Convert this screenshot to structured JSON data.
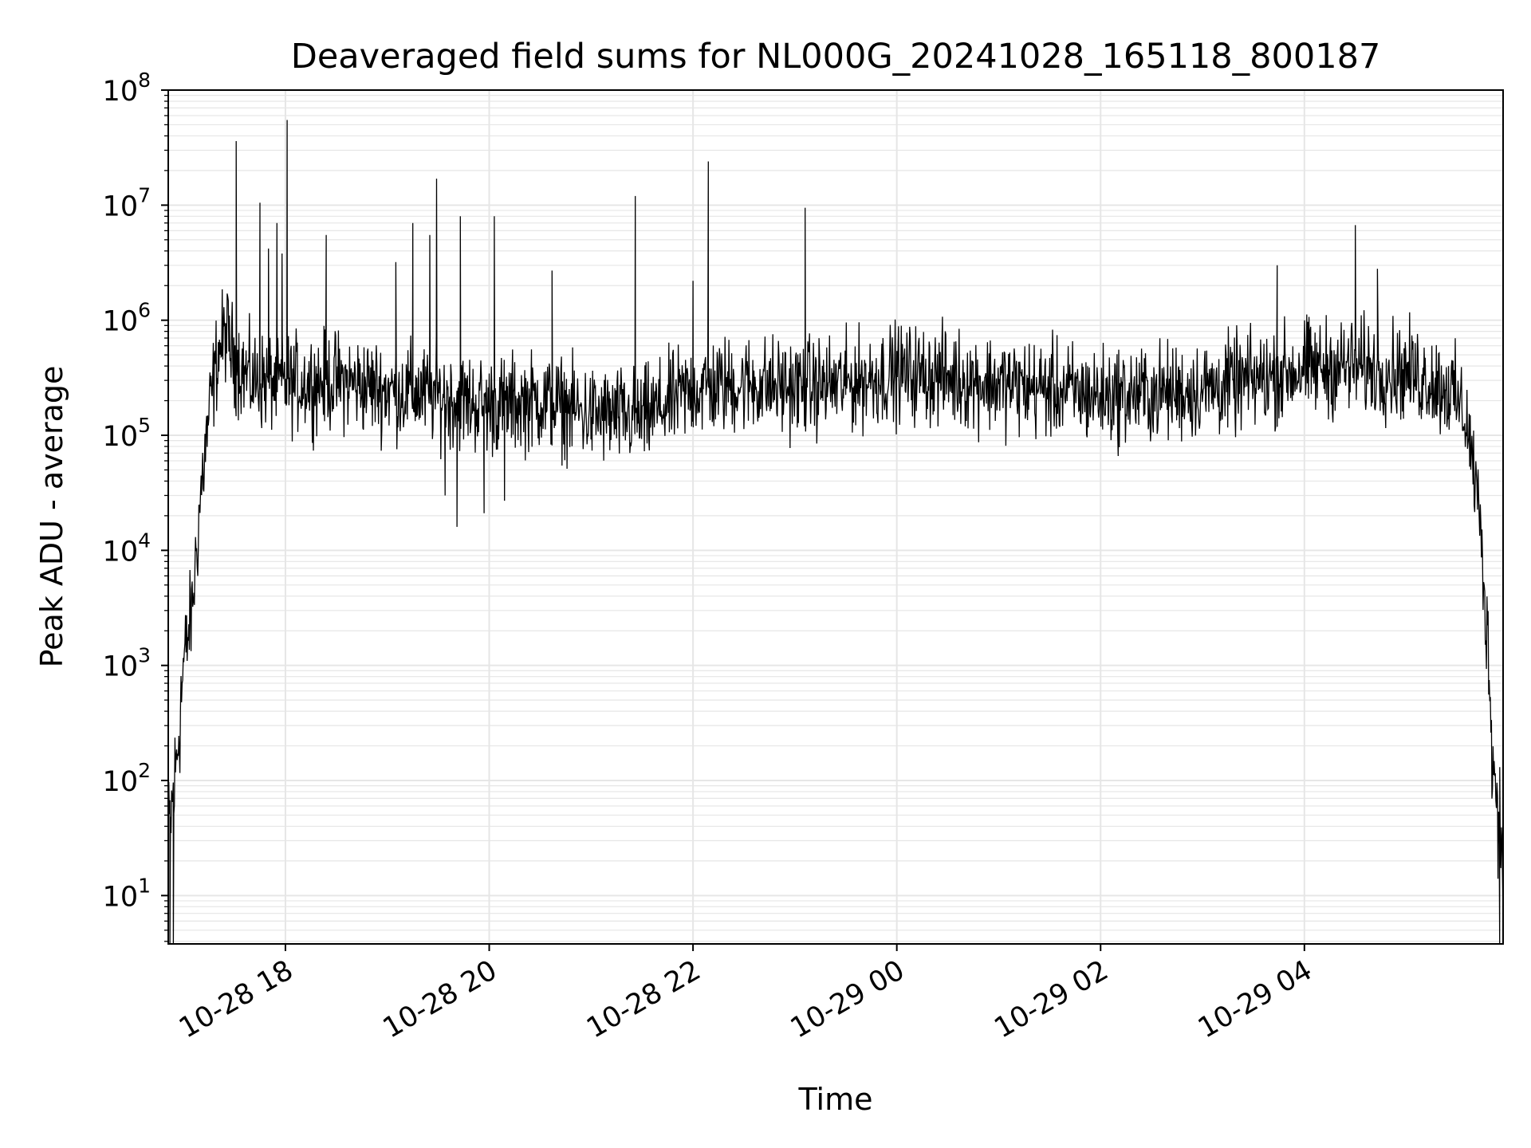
{
  "chart_data": {
    "type": "line",
    "title": "Deaveraged field sums for NL000G_20241028_165118_800187",
    "xlabel": "Time",
    "ylabel": "Peak ADU - average",
    "yscale": "log",
    "ylim": [
      3.8,
      100000000
    ],
    "xlim": [
      "2024-10-28 16:51",
      "2024-10-29 05:57"
    ],
    "grid": true,
    "line_color": "#000000",
    "grid_color": "#e6e6e6",
    "x_ticks": [
      {
        "value": "2024-10-28 18:00",
        "label": "10-28 18"
      },
      {
        "value": "2024-10-28 20:00",
        "label": "10-28 20"
      },
      {
        "value": "2024-10-28 22:00",
        "label": "10-28 22"
      },
      {
        "value": "2024-10-29 00:00",
        "label": "10-29 00"
      },
      {
        "value": "2024-10-29 02:00",
        "label": "10-29 02"
      },
      {
        "value": "2024-10-29 04:00",
        "label": "10-29 04"
      }
    ],
    "y_ticks": [
      {
        "value": 10,
        "base": "10",
        "exp": "1"
      },
      {
        "value": 100,
        "base": "10",
        "exp": "2"
      },
      {
        "value": 1000,
        "base": "10",
        "exp": "3"
      },
      {
        "value": 10000,
        "base": "10",
        "exp": "4"
      },
      {
        "value": 100000,
        "base": "10",
        "exp": "5"
      },
      {
        "value": 1000000,
        "base": "10",
        "exp": "6"
      },
      {
        "value": 10000000,
        "base": "10",
        "exp": "7"
      },
      {
        "value": 100000000,
        "base": "10",
        "exp": "8"
      }
    ],
    "series": [
      {
        "envelope": {
          "x": [
            "2024-10-28 16:51",
            "2024-10-28 16:55",
            "2024-10-28 17:00",
            "2024-10-28 17:05",
            "2024-10-28 17:10",
            "2024-10-28 17:15",
            "2024-10-28 17:20",
            "2024-10-28 17:25",
            "2024-10-28 17:30",
            "2024-10-28 17:40",
            "2024-10-28 18:00",
            "2024-10-28 18:30",
            "2024-10-28 19:00",
            "2024-10-28 19:30",
            "2024-10-28 20:00",
            "2024-10-28 20:30",
            "2024-10-28 21:00",
            "2024-10-28 21:30",
            "2024-10-28 22:00",
            "2024-10-28 22:30",
            "2024-10-28 23:00",
            "2024-10-28 23:30",
            "2024-10-29 00:00",
            "2024-10-29 00:30",
            "2024-10-29 01:00",
            "2024-10-29 01:30",
            "2024-10-29 02:00",
            "2024-10-29 02:30",
            "2024-10-29 03:00",
            "2024-10-29 03:30",
            "2024-10-29 04:00",
            "2024-10-29 04:30",
            "2024-10-29 05:00",
            "2024-10-29 05:15",
            "2024-10-29 05:25",
            "2024-10-29 05:35",
            "2024-10-29 05:42",
            "2024-10-29 05:48",
            "2024-10-29 05:52",
            "2024-10-29 05:57"
          ],
          "y": [
            30,
            100,
            1000,
            3000,
            30000,
            150000,
            500000,
            800000,
            450000,
            300000,
            280000,
            300000,
            250000,
            220000,
            180000,
            200000,
            150000,
            140000,
            250000,
            280000,
            260000,
            280000,
            350000,
            320000,
            280000,
            250000,
            220000,
            230000,
            250000,
            300000,
            380000,
            400000,
            350000,
            300000,
            250000,
            150000,
            30000,
            1500,
            100,
            30
          ]
        },
        "spikes": [
          {
            "x": "2024-10-28 17:31",
            "y": 36000000
          },
          {
            "x": "2024-10-28 17:45",
            "y": 10500000
          },
          {
            "x": "2024-10-28 17:50",
            "y": 4200000
          },
          {
            "x": "2024-10-28 17:55",
            "y": 7000000
          },
          {
            "x": "2024-10-28 17:58",
            "y": 3800000
          },
          {
            "x": "2024-10-28 18:01",
            "y": 55000000
          },
          {
            "x": "2024-10-28 18:24",
            "y": 5500000
          },
          {
            "x": "2024-10-28 19:05",
            "y": 3200000
          },
          {
            "x": "2024-10-28 19:15",
            "y": 7000000
          },
          {
            "x": "2024-10-28 19:25",
            "y": 5500000
          },
          {
            "x": "2024-10-28 19:29",
            "y": 17000000
          },
          {
            "x": "2024-10-28 19:43",
            "y": 8000000
          },
          {
            "x": "2024-10-28 20:03",
            "y": 8000000
          },
          {
            "x": "2024-10-28 20:37",
            "y": 2700000
          },
          {
            "x": "2024-10-28 21:26",
            "y": 12000000
          },
          {
            "x": "2024-10-28 22:09",
            "y": 24000000
          },
          {
            "x": "2024-10-28 22:00",
            "y": 2200000
          },
          {
            "x": "2024-10-28 23:06",
            "y": 9500000
          },
          {
            "x": "2024-10-29 03:44",
            "y": 3000000
          },
          {
            "x": "2024-10-29 04:30",
            "y": 6700000
          },
          {
            "x": "2024-10-29 04:43",
            "y": 2800000
          }
        ],
        "dips": [
          {
            "x": "2024-10-28 16:52",
            "y": 3.8
          },
          {
            "x": "2024-10-28 16:54",
            "y": 3.8
          },
          {
            "x": "2024-10-28 19:34",
            "y": 30000
          },
          {
            "x": "2024-10-28 19:41",
            "y": 16000
          },
          {
            "x": "2024-10-28 19:57",
            "y": 21000
          },
          {
            "x": "2024-10-28 20:09",
            "y": 27000
          },
          {
            "x": "2024-10-29 05:55",
            "y": 3.8
          },
          {
            "x": "2024-10-29 05:54",
            "y": 14
          }
        ]
      }
    ]
  }
}
